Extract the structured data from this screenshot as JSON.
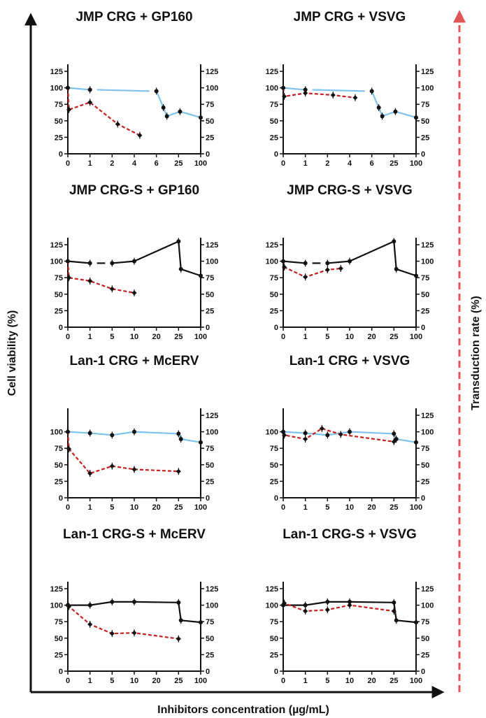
{
  "figure": {
    "ylabel_left": "Cell viability (%)",
    "ylabel_right": "Transduction rate (%)",
    "xlabel": "Inhibitors concentration (µg/mL)",
    "colors": {
      "viability_blue": "#7ec3ee",
      "viability_black": "#111111",
      "transduction": "#c81e1e",
      "right_arrow": "#e05555"
    }
  },
  "chart_data": [
    {
      "type": "line",
      "title": "JMP CRG + GP160",
      "x_ticks": [
        "0",
        "1",
        "2",
        "4",
        "6",
        "25",
        "100"
      ],
      "y_ticks": [
        "0",
        "25",
        "50",
        "75",
        "100",
        "125"
      ],
      "y_right_ticks": [
        "0",
        "25",
        "50",
        "75",
        "100",
        "125"
      ],
      "ylim": [
        0,
        125
      ],
      "viability": {
        "color": "blue",
        "points": [
          [
            0,
            100
          ],
          [
            1,
            97
          ],
          [
            6,
            95
          ],
          [
            12,
            70
          ],
          [
            15,
            57
          ],
          [
            30,
            64
          ],
          [
            100,
            55
          ]
        ],
        "gaps": [
          [
            1,
            6
          ]
        ]
      },
      "transduction": {
        "points": [
          [
            0,
            100
          ],
          [
            0.05,
            67
          ],
          [
            1,
            78
          ],
          [
            2.5,
            45
          ],
          [
            4.5,
            28
          ]
        ]
      }
    },
    {
      "type": "line",
      "title": "JMP CRG + VSVG",
      "x_ticks": [
        "0",
        "1",
        "2",
        "4",
        "6",
        "25",
        "100"
      ],
      "y_ticks": [
        "0",
        "25",
        "50",
        "75",
        "100",
        "125"
      ],
      "y_right_ticks": [
        "0",
        "25",
        "50",
        "75",
        "100",
        "125"
      ],
      "ylim": [
        0,
        125
      ],
      "viability": {
        "color": "blue",
        "points": [
          [
            0,
            100
          ],
          [
            1,
            97
          ],
          [
            6,
            95
          ],
          [
            12,
            70
          ],
          [
            15,
            57
          ],
          [
            30,
            64
          ],
          [
            100,
            55
          ]
        ],
        "gaps": [
          [
            1,
            6
          ]
        ]
      },
      "transduction": {
        "points": [
          [
            0,
            100
          ],
          [
            0.05,
            87
          ],
          [
            1,
            92
          ],
          [
            2.5,
            89
          ],
          [
            4.5,
            85
          ]
        ]
      }
    },
    {
      "type": "line",
      "title": "JMP CRG-S + GP160",
      "x_ticks": [
        "0",
        "1",
        "5",
        "10",
        "20",
        "25",
        "100"
      ],
      "y_ticks": [
        "0",
        "25",
        "50",
        "75",
        "100",
        "125"
      ],
      "y_right_ticks": [
        "0",
        "25",
        "50",
        "75",
        "100",
        "125"
      ],
      "ylim": [
        0,
        125
      ],
      "viability": {
        "color": "black",
        "points": [
          [
            0,
            100
          ],
          [
            1,
            97
          ],
          [
            5,
            97
          ],
          [
            10,
            100
          ],
          [
            25,
            130
          ],
          [
            33,
            88
          ],
          [
            100,
            78
          ]
        ],
        "gaps": [
          [
            1,
            5
          ]
        ]
      },
      "transduction": {
        "points": [
          [
            0,
            100
          ],
          [
            0.05,
            75
          ],
          [
            1,
            70
          ],
          [
            5,
            58
          ],
          [
            10,
            52
          ]
        ]
      }
    },
    {
      "type": "line",
      "title": "JMP CRG-S + VSVG",
      "x_ticks": [
        "0",
        "1",
        "5",
        "10",
        "20",
        "25",
        "100"
      ],
      "y_ticks": [
        "0",
        "25",
        "50",
        "75",
        "100",
        "125"
      ],
      "y_right_ticks": [
        "0",
        "25",
        "50",
        "75",
        "100",
        "125"
      ],
      "ylim": [
        0,
        125
      ],
      "viability": {
        "color": "black",
        "points": [
          [
            0,
            100
          ],
          [
            1,
            97
          ],
          [
            5,
            97
          ],
          [
            10,
            100
          ],
          [
            25,
            130
          ],
          [
            33,
            88
          ],
          [
            100,
            78
          ]
        ],
        "gaps": [
          [
            1,
            5
          ]
        ]
      },
      "transduction": {
        "points": [
          [
            0,
            100
          ],
          [
            0.05,
            91
          ],
          [
            1,
            76
          ],
          [
            5,
            87
          ],
          [
            8,
            89
          ]
        ]
      }
    },
    {
      "type": "line",
      "title": "Lan-1 CRG + McERV",
      "x_ticks": [
        "0",
        "1",
        "5",
        "10",
        "20",
        "25",
        "100"
      ],
      "y_ticks": [
        "0",
        "25",
        "50",
        "75",
        "100"
      ],
      "y_right_ticks": [
        "0",
        "25",
        "50",
        "75",
        "100",
        "125"
      ],
      "ylim": [
        0,
        125
      ],
      "viability": {
        "color": "blue",
        "points": [
          [
            0,
            100
          ],
          [
            1,
            98
          ],
          [
            5,
            95
          ],
          [
            10,
            100
          ],
          [
            25,
            97
          ],
          [
            33,
            89
          ],
          [
            100,
            84
          ]
        ],
        "gaps": []
      },
      "transduction": {
        "points": [
          [
            0,
            100
          ],
          [
            0.05,
            74
          ],
          [
            1,
            37
          ],
          [
            5,
            48
          ],
          [
            10,
            43
          ],
          [
            25,
            40
          ]
        ]
      }
    },
    {
      "type": "line",
      "title": "Lan-1 CRG + VSVG",
      "x_ticks": [
        "0",
        "1",
        "5",
        "10",
        "20",
        "25",
        "100"
      ],
      "y_ticks": [
        "0",
        "25",
        "50",
        "75",
        "100"
      ],
      "y_right_ticks": [
        "0",
        "25",
        "50",
        "75",
        "100",
        "125"
      ],
      "ylim": [
        0,
        125
      ],
      "viability": {
        "color": "blue",
        "points": [
          [
            0,
            100
          ],
          [
            1,
            98
          ],
          [
            5,
            95
          ],
          [
            10,
            100
          ],
          [
            25,
            97
          ],
          [
            33,
            89
          ],
          [
            100,
            84
          ]
        ],
        "gaps": []
      },
      "transduction": {
        "points": [
          [
            0,
            100
          ],
          [
            0.05,
            95
          ],
          [
            1,
            89
          ],
          [
            4,
            105
          ],
          [
            8,
            96
          ],
          [
            25,
            85
          ]
        ]
      }
    },
    {
      "type": "line",
      "title": "Lan-1 CRG-S + McERV",
      "x_ticks": [
        "0",
        "1",
        "5",
        "10",
        "20",
        "25",
        "100"
      ],
      "y_ticks": [
        "0",
        "25",
        "50",
        "75",
        "100",
        "125"
      ],
      "y_right_ticks": [
        "0",
        "25",
        "50",
        "75",
        "100",
        "125"
      ],
      "ylim": [
        0,
        125
      ],
      "viability": {
        "color": "black",
        "points": [
          [
            0,
            100
          ],
          [
            1,
            100
          ],
          [
            5,
            105
          ],
          [
            10,
            105
          ],
          [
            25,
            104
          ],
          [
            33,
            77
          ],
          [
            100,
            74
          ]
        ],
        "gaps": []
      },
      "transduction": {
        "points": [
          [
            0,
            100
          ],
          [
            0.05,
            98
          ],
          [
            1,
            71
          ],
          [
            5,
            57
          ],
          [
            10,
            58
          ],
          [
            25,
            49
          ]
        ]
      }
    },
    {
      "type": "line",
      "title": "Lan-1 CRG-S + VSVG",
      "x_ticks": [
        "0",
        "1",
        "5",
        "10",
        "20",
        "25",
        "100"
      ],
      "y_ticks": [
        "0",
        "25",
        "50",
        "75",
        "100",
        "125"
      ],
      "y_right_ticks": [
        "0",
        "25",
        "50",
        "75",
        "100",
        "125"
      ],
      "ylim": [
        0,
        125
      ],
      "viability": {
        "color": "black",
        "points": [
          [
            0,
            100
          ],
          [
            1,
            100
          ],
          [
            5,
            105
          ],
          [
            10,
            105
          ],
          [
            25,
            104
          ],
          [
            33,
            77
          ],
          [
            100,
            74
          ]
        ],
        "gaps": []
      },
      "transduction": {
        "points": [
          [
            0,
            100
          ],
          [
            0.05,
            103
          ],
          [
            1,
            91
          ],
          [
            5,
            93
          ],
          [
            10,
            100
          ],
          [
            25,
            91
          ]
        ]
      }
    }
  ]
}
